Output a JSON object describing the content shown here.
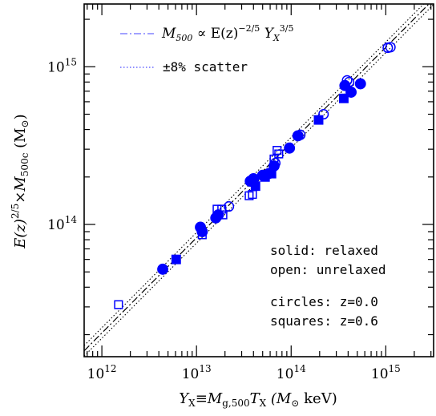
{
  "chart_data": {
    "type": "scatter",
    "xscale": "log",
    "yscale": "log",
    "xlim": [
      650000000000.0,
      3200000000000000.0
    ],
    "ylim": [
      14500000000000.0,
      2500000000000000.0
    ],
    "xlabel": {
      "main": "Y",
      "sub1": "X",
      "mid": "≡M",
      "sub2": "g,500",
      "t": "T",
      "sub3": "X",
      "unit": "  (M",
      "sun": "⊙",
      "tail": " keV)"
    },
    "ylabel": {
      "main": "E(z)",
      "sup": "2/5",
      "mid": "×M",
      "sub": "500c",
      "unit": "  (M",
      "sun": "⊙",
      "tail": ")"
    },
    "x_ticks": [
      {
        "value": 1000000000000.0,
        "base": "10",
        "exp": "12"
      },
      {
        "value": 10000000000000.0,
        "base": "10",
        "exp": "13"
      },
      {
        "value": 100000000000000.0,
        "base": "10",
        "exp": "14"
      },
      {
        "value": 1000000000000000.0,
        "base": "10",
        "exp": "15"
      }
    ],
    "y_ticks": [
      {
        "value": 100000000000000.0,
        "base": "10",
        "exp": "14"
      },
      {
        "value": 1000000000000000.0,
        "base": "10",
        "exp": "15"
      }
    ],
    "legend": {
      "placement": "top-left",
      "fit": {
        "m": "M",
        "msub": "500",
        "rel": " ∝ E(z)",
        "exp1": "−2/5",
        "y": " Y",
        "ysub": "X",
        "exp2": "3/5"
      },
      "scatter": "±8% scatter"
    },
    "annotations": [
      "solid: relaxed",
      "open: unrelaxed",
      "circles: z=0.0",
      "squares: z=0.6"
    ],
    "fit_line": {
      "x": [
        650000000000.0,
        3200000000000000.0
      ],
      "y": [
        15800000000000.0,
        2680000000000000.0
      ],
      "scatter_fraction": 0.08
    },
    "colors": {
      "points": "#0000ff",
      "fit": "#000000",
      "scatter": "#0000ff",
      "axes": "#000000"
    },
    "series": [
      {
        "name": "solid: relaxed",
        "marker": "circle",
        "filled": true,
        "points": [
          [
            4400000000000.0,
            52000000000000.0
          ],
          [
            11000000000000.0,
            96000000000000.0
          ],
          [
            11500000000000.0,
            90000000000000.0
          ],
          [
            16000000000000.0,
            110000000000000.0
          ],
          [
            17000000000000.0,
            115000000000000.0
          ],
          [
            37000000000000.0,
            188000000000000.0
          ],
          [
            40000000000000.0,
            195000000000000.0
          ],
          [
            50000000000000.0,
            205000000000000.0
          ],
          [
            58000000000000.0,
            210000000000000.0
          ],
          [
            66000000000000.0,
            235000000000000.0
          ],
          [
            96000000000000.0,
            305000000000000.0
          ],
          [
            118000000000000.0,
            365000000000000.0
          ],
          [
            370000000000000.0,
            760000000000000.0
          ],
          [
            430000000000000.0,
            690000000000000.0
          ],
          [
            540000000000000.0,
            780000000000000.0
          ]
        ]
      },
      {
        "name": "solid: relaxed",
        "marker": "square",
        "filled": true,
        "points": [
          [
            6100000000000.0,
            60000000000000.0
          ],
          [
            42000000000000.0,
            175000000000000.0
          ],
          [
            53000000000000.0,
            200000000000000.0
          ],
          [
            62000000000000.0,
            210000000000000.0
          ],
          [
            195000000000000.0,
            460000000000000.0
          ],
          [
            360000000000000.0,
            630000000000000.0
          ]
        ]
      },
      {
        "name": "open: unrelaxed",
        "marker": "circle",
        "filled": false,
        "points": [
          [
            22000000000000.0,
            130000000000000.0
          ],
          [
            68000000000000.0,
            245000000000000.0
          ],
          [
            125000000000000.0,
            370000000000000.0
          ],
          [
            220000000000000.0,
            500000000000000.0
          ],
          [
            390000000000000.0,
            820000000000000.0
          ],
          [
            410000000000000.0,
            800000000000000.0
          ],
          [
            1050000000000000.0,
            1320000000000000.0
          ],
          [
            1120000000000000.0,
            1330000000000000.0
          ]
        ]
      },
      {
        "name": "open: unrelaxed",
        "marker": "square",
        "filled": false,
        "points": [
          [
            1500000000000.0,
            31000000000000.0
          ],
          [
            11500000000000.0,
            86000000000000.0
          ],
          [
            16500000000000.0,
            125000000000000.0
          ],
          [
            18500000000000.0,
            125000000000000.0
          ],
          [
            19000000000000.0,
            115000000000000.0
          ],
          [
            36000000000000.0,
            152000000000000.0
          ],
          [
            39000000000000.0,
            155000000000000.0
          ],
          [
            66000000000000.0,
            260000000000000.0
          ],
          [
            71000000000000.0,
            295000000000000.0
          ],
          [
            74000000000000.0,
            280000000000000.0
          ]
        ]
      }
    ]
  }
}
